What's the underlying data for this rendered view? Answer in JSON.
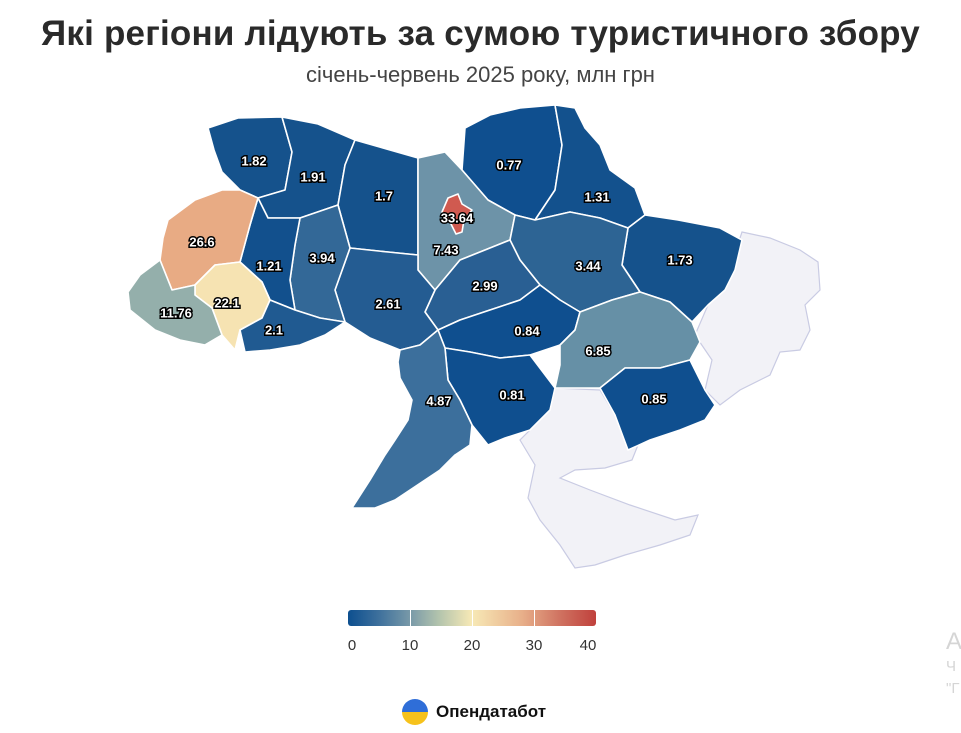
{
  "title": "Які регіони лідують за сумою туристичного збору",
  "subtitle": "січень-червень 2025 року, млн грн",
  "brand": {
    "name": "Опендатабот",
    "icon": "opendatabot-logo-icon"
  },
  "legend": {
    "ticks": [
      "0",
      "10",
      "20",
      "30",
      "40"
    ]
  },
  "colors": {
    "occupied": "#f2f2f7",
    "low": "#0d4f8f",
    "mid": "#f7e9b6",
    "high": "#c0413c"
  },
  "regions": [
    {
      "name": "Волинська",
      "value": "1.82",
      "color": "#15528c"
    },
    {
      "name": "Рівненська",
      "value": "1.91",
      "color": "#15528c"
    },
    {
      "name": "Житомирська",
      "value": "1.7",
      "color": "#15528c"
    },
    {
      "name": "Київська",
      "value": "7.43",
      "color": "#6d93a8"
    },
    {
      "name": "м. Київ",
      "value": "33.64",
      "color": "#d05a50"
    },
    {
      "name": "Чернігівська",
      "value": "0.77",
      "color": "#0f4f8f"
    },
    {
      "name": "Сумська",
      "value": "1.31",
      "color": "#13518d"
    },
    {
      "name": "Харківська",
      "value": "1.73",
      "color": "#15528c"
    },
    {
      "name": "Полтавська",
      "value": "3.44",
      "color": "#2d6494"
    },
    {
      "name": "Черкаська",
      "value": "2.99",
      "color": "#295f93"
    },
    {
      "name": "Вінницька",
      "value": "2.61",
      "color": "#245c92"
    },
    {
      "name": "Хмельницька",
      "value": "3.94",
      "color": "#336897"
    },
    {
      "name": "Тернопільська",
      "value": "1.21",
      "color": "#12508d"
    },
    {
      "name": "Львівська",
      "value": "26.6",
      "color": "#e8ab84"
    },
    {
      "name": "Івано-Франківська",
      "value": "22.1",
      "color": "#f6e3b2"
    },
    {
      "name": "Закарпатська",
      "value": "11.76",
      "color": "#94afab"
    },
    {
      "name": "Чернівецька",
      "value": "2.1",
      "color": "#205a91"
    },
    {
      "name": "Кіровоградська",
      "value": "0.84",
      "color": "#0f4f8f"
    },
    {
      "name": "Дніпропетровська",
      "value": "6.85",
      "color": "#6690a6"
    },
    {
      "name": "Донецька",
      "value": "0.85",
      "color": "#0f4f8f"
    },
    {
      "name": "Миколаївська",
      "value": "0.81",
      "color": "#0f4f8f"
    },
    {
      "name": "Одеська",
      "value": "4.87",
      "color": "#3c6f9c"
    }
  ],
  "ghost": {
    "line1": "A",
    "line2": "Ч",
    "line3": "\"Г"
  }
}
